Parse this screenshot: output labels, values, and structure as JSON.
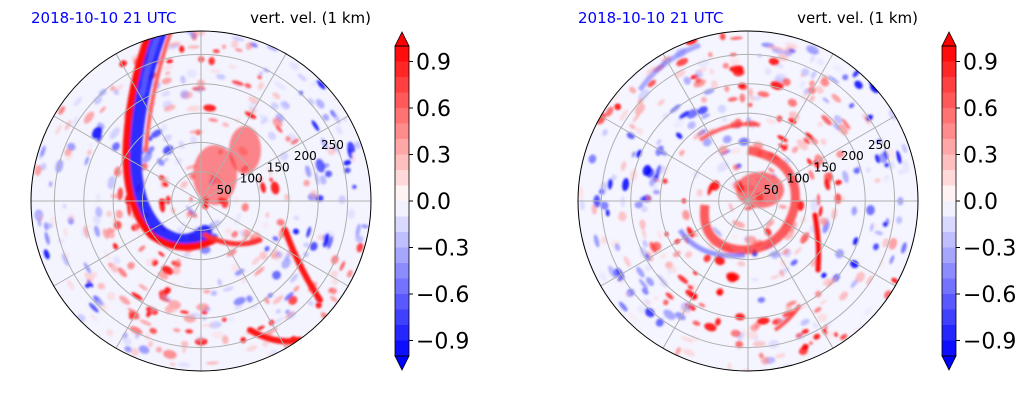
{
  "colors": {
    "negative": "#0000ff",
    "neutral": "#ffffff",
    "positive": "#ff0000",
    "grid": "#b0b0b0",
    "title_date": "#0000ff"
  },
  "chart_data": [
    {
      "type": "heatmap",
      "projection": "polar",
      "title_left": "2018-10-10 21 UTC",
      "title_right": "vert. vel. (1 km)",
      "radial_ticks": [
        "50",
        "100",
        "150",
        "200",
        "250"
      ],
      "radial_values": [
        50,
        100,
        150,
        200,
        250
      ],
      "rmax": 290,
      "colorbar": {
        "ticks": [
          0.9,
          0.6,
          0.3,
          0.0,
          -0.3,
          -0.6,
          -0.9
        ],
        "tick_labels": [
          "0.9",
          "0.6",
          "0.3",
          "0.0",
          "−0.3",
          "−0.6",
          "−0.9"
        ],
        "vmin": -1.0,
        "vmax": 1.0,
        "extend": "both",
        "cmap": "bwr"
      }
    },
    {
      "type": "heatmap",
      "projection": "polar",
      "title_left": "2018-10-10 21 UTC",
      "title_right": "vert. vel. (1 km)",
      "radial_ticks": [
        "50",
        "100",
        "150",
        "200",
        "250"
      ],
      "radial_values": [
        50,
        100,
        150,
        200,
        250
      ],
      "rmax": 290,
      "colorbar": {
        "ticks": [
          0.9,
          0.6,
          0.3,
          0.0,
          -0.3,
          -0.6,
          -0.9
        ],
        "tick_labels": [
          "0.9",
          "0.6",
          "0.3",
          "0.0",
          "−0.3",
          "−0.6",
          "−0.9"
        ],
        "vmin": -1.0,
        "vmax": 1.0,
        "extend": "both",
        "cmap": "bwr"
      }
    }
  ]
}
